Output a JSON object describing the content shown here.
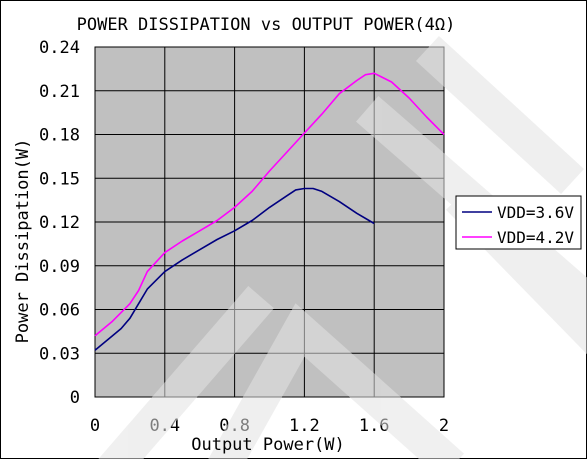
{
  "chart_data": {
    "type": "line",
    "title": "POWER DISSIPATION vs OUTPUT POWER(4Ω)",
    "xlabel": "Output Power(W)",
    "ylabel": "Power Dissipation(W)",
    "xlim": [
      0,
      2
    ],
    "ylim": [
      0,
      0.24
    ],
    "x_ticks": [
      "0",
      "0.4",
      "0.8",
      "1.2",
      "1.6",
      "2"
    ],
    "x_tick_values": [
      0,
      0.4,
      0.8,
      1.2,
      1.6,
      2
    ],
    "y_ticks": [
      "0",
      "0.03",
      "0.06",
      "0.09",
      "0.12",
      "0.15",
      "0.18",
      "0.21",
      "0.24"
    ],
    "y_tick_values": [
      0,
      0.03,
      0.06,
      0.09,
      0.12,
      0.15,
      0.18,
      0.21,
      0.24
    ],
    "grid": true,
    "plot_background": "#c0c0c0",
    "legend_position": "right",
    "series": [
      {
        "name": "VDD=3.6V",
        "color": "#000080",
        "x": [
          0,
          0.1,
          0.15,
          0.2,
          0.25,
          0.3,
          0.4,
          0.5,
          0.6,
          0.7,
          0.8,
          0.9,
          1.0,
          1.1,
          1.15,
          1.2,
          1.25,
          1.3,
          1.4,
          1.5,
          1.6
        ],
        "y": [
          0.032,
          0.042,
          0.047,
          0.054,
          0.064,
          0.074,
          0.086,
          0.094,
          0.101,
          0.108,
          0.114,
          0.121,
          0.13,
          0.138,
          0.142,
          0.143,
          0.143,
          0.141,
          0.134,
          0.126,
          0.119
        ]
      },
      {
        "name": "VDD=4.2V",
        "color": "#ff00ff",
        "x": [
          0,
          0.1,
          0.2,
          0.25,
          0.3,
          0.4,
          0.5,
          0.6,
          0.7,
          0.8,
          0.9,
          1.0,
          1.1,
          1.2,
          1.3,
          1.4,
          1.5,
          1.55,
          1.6,
          1.7,
          1.8,
          1.9,
          2.0
        ],
        "y": [
          0.042,
          0.052,
          0.064,
          0.073,
          0.086,
          0.099,
          0.107,
          0.114,
          0.121,
          0.13,
          0.141,
          0.155,
          0.168,
          0.181,
          0.194,
          0.208,
          0.217,
          0.221,
          0.222,
          0.216,
          0.205,
          0.192,
          0.18
        ]
      }
    ]
  }
}
